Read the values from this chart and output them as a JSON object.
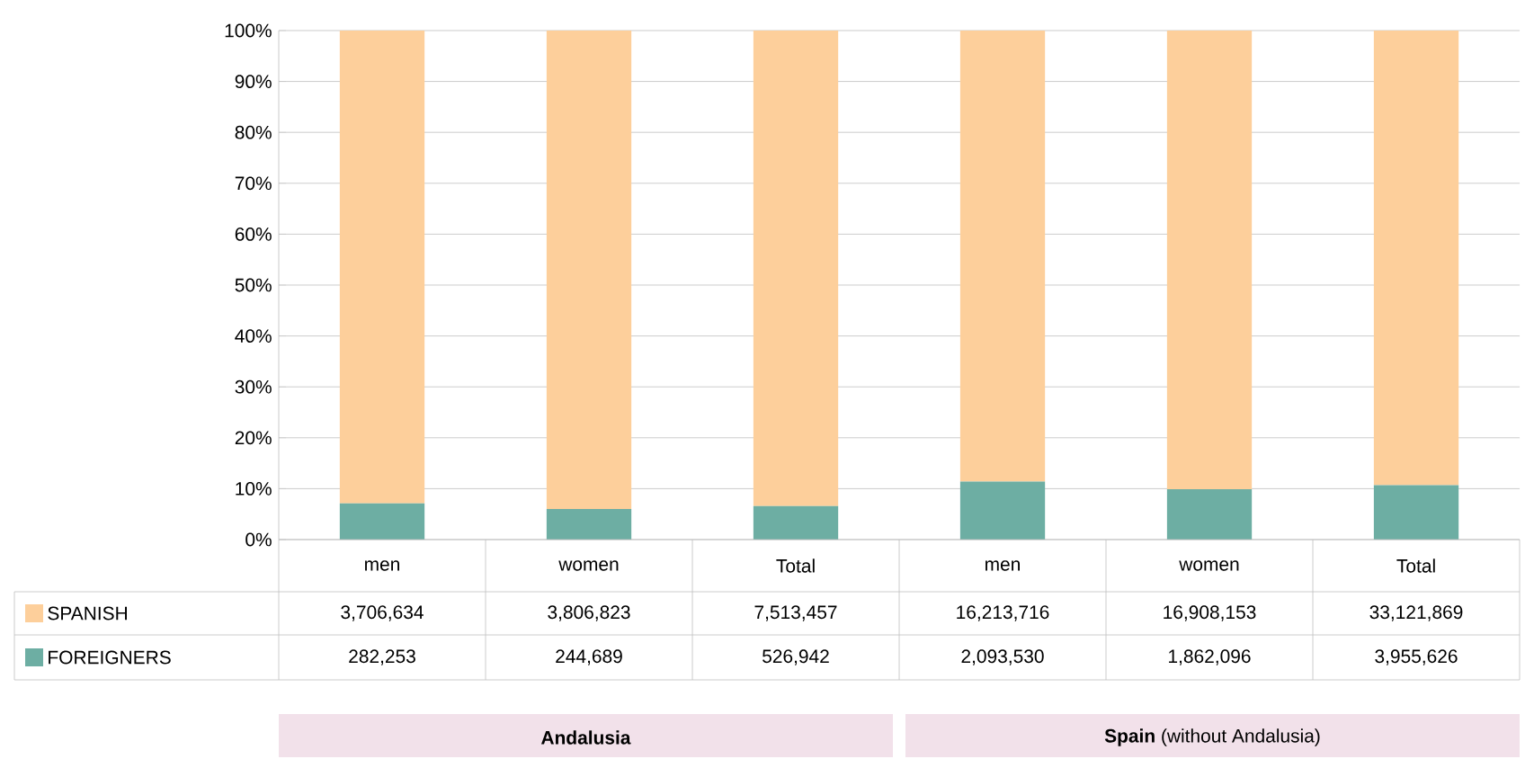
{
  "chart_data": {
    "type": "bar",
    "stacked": true,
    "categories": [
      "men",
      "women",
      "Total",
      "men",
      "women",
      "Total"
    ],
    "series": [
      {
        "name": "FOREIGNERS",
        "color": "#6daea3",
        "values": [
          7.1,
          6.0,
          6.6,
          11.4,
          9.9,
          10.7
        ]
      },
      {
        "name": "SPANISH",
        "color": "#fdcf9b",
        "values": [
          92.9,
          94.0,
          93.4,
          88.6,
          90.1,
          89.3
        ]
      }
    ],
    "ylim": [
      0,
      100
    ],
    "yticks": [
      {
        "value": 0,
        "label": "0%"
      },
      {
        "value": 10,
        "label": "10%"
      },
      {
        "value": 20,
        "label": "20%"
      },
      {
        "value": 30,
        "label": "30%"
      },
      {
        "value": 40,
        "label": "40%"
      },
      {
        "value": 50,
        "label": "50%"
      },
      {
        "value": 60,
        "label": "60%"
      },
      {
        "value": 70,
        "label": "70%"
      },
      {
        "value": 80,
        "label": "80%"
      },
      {
        "value": 90,
        "label": "90%"
      },
      {
        "value": 100,
        "label": "100%"
      }
    ],
    "grid": "y",
    "legend": "left",
    "annotations": [
      "3,706,634",
      "3,806,823",
      "7,513,457",
      "16,213,716",
      "16,908,153",
      "33,121,869",
      "282,253",
      "244,689",
      "526,942",
      "2,093,530",
      "1,862,096",
      "3,955,626",
      "**Andalusia**",
      "**Spain**  (without Andalusia)"
    ]
  }
}
